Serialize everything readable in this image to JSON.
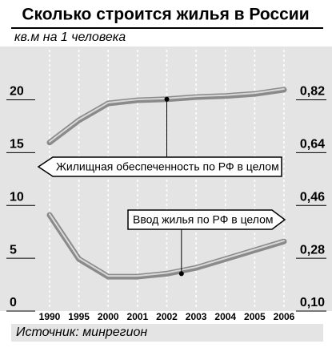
{
  "chart_data": {
    "type": "line",
    "title": "Сколько  строится жилья в России",
    "subtitle": "кв.м на 1 человека",
    "source": "Источник: минрегион",
    "categories": [
      "1990",
      "1995",
      "2000",
      "2001",
      "2002",
      "2003",
      "2004",
      "2005",
      "2006"
    ],
    "series": [
      {
        "name": "Жилищная обеспеченность по РФ в целом",
        "color": "#8a8a8a",
        "values": [
          15.2,
          17.3,
          18.9,
          19.2,
          19.3,
          19.5,
          19.6,
          19.8,
          20.2
        ]
      },
      {
        "name": "Ввод жилья по РФ в целом",
        "color": "#8a8a8a",
        "axis": "y2",
        "values": [
          0.4,
          0.25,
          0.19,
          0.19,
          0.2,
          0.22,
          0.25,
          0.28,
          0.31
        ]
      }
    ],
    "ylim": [
      0,
      23
    ],
    "yticks": [
      0,
      5,
      10,
      15,
      20
    ],
    "y2lim": [
      0.1,
      0.928
    ],
    "y2ticks": [
      {
        "value": 0.1,
        "label": "0,10"
      },
      {
        "value": 0.28,
        "label": "0,28"
      },
      {
        "value": 0.46,
        "label": "0,46"
      },
      {
        "value": 0.64,
        "label": "0,64"
      },
      {
        "value": 0.82,
        "label": "0,82"
      }
    ],
    "grid": true
  }
}
